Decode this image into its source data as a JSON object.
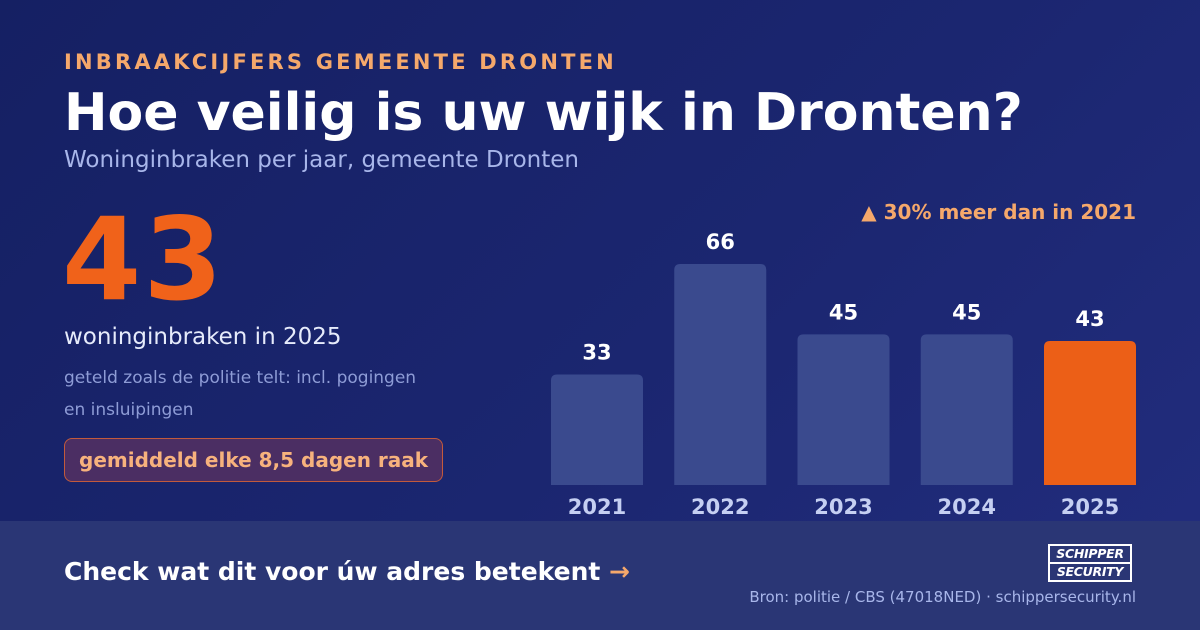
{
  "header": {
    "eyebrow": "INBRAAKCIJFERS GEMEENTE DRONTEN",
    "title": "Hoe veilig is uw wijk in Dronten?",
    "subtitle": "Woninginbraken per jaar, gemeente Dronten"
  },
  "highlight": {
    "number": "43",
    "caption": "woninginbraken in 2025",
    "note": "geteld zoals de politie telt: incl. pogingen en insluipingen",
    "badge": "gemiddeld elke 8,5 dagen raak"
  },
  "change": {
    "arrow": "▲",
    "text": "30% meer dan in 2021"
  },
  "chart_data": {
    "type": "bar",
    "categories": [
      "2021",
      "2022",
      "2023",
      "2024",
      "2025"
    ],
    "values": [
      33,
      66,
      45,
      45,
      43
    ],
    "highlight_index": 4,
    "ylim": [
      0,
      66
    ],
    "grid": false,
    "colors": {
      "bar": "#3a4a8e",
      "highlight": "#ec5f17",
      "value_label": "#ffffff",
      "category_label": "#c5cff2"
    }
  },
  "footer": {
    "cta": "Check wat dit voor úw adres betekent",
    "cta_arrow": "→",
    "source": "Bron: politie / CBS (47018NED) · schippersecurity.nl",
    "logo_line1": "SCHIPPER",
    "logo_line2": "SECURITY"
  }
}
